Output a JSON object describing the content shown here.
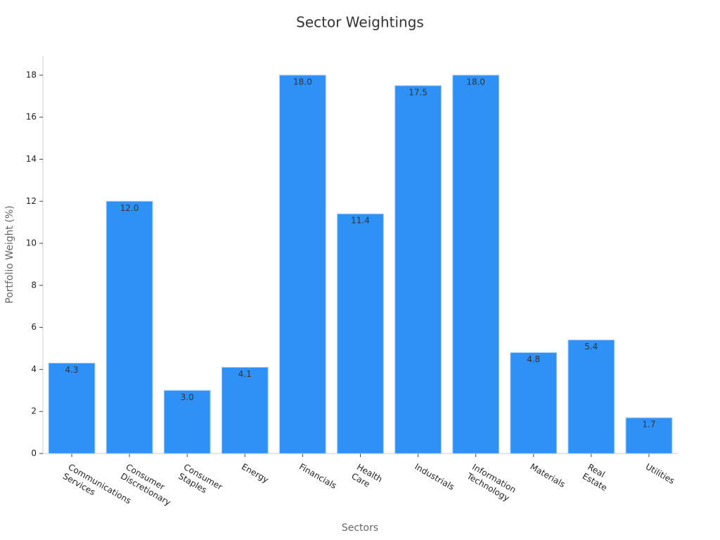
{
  "chart_data": {
    "type": "bar",
    "title": "Sector Weightings",
    "x_label": "Sectors",
    "y_label": "Portfolio Weight (%)",
    "categories": [
      "Communications Services",
      "Consumer Discretionary",
      "Consumer Staples",
      "Energy",
      "Financials",
      "Health Care",
      "Industrials",
      "Information Technology",
      "Materials",
      "Real Estate",
      "Utilities"
    ],
    "values": [
      4.3,
      12.0,
      3.0,
      4.1,
      18.0,
      11.4,
      17.5,
      18.0,
      4.8,
      5.4,
      1.7
    ],
    "value_labels": [
      "4.3",
      "12.0",
      "3.0",
      "4.1",
      "18.0",
      "11.4",
      "17.5",
      "18.0",
      "4.8",
      "5.4",
      "1.7"
    ],
    "color": "#2f91f6",
    "ylim": [
      0,
      18.9
    ],
    "yticks": [
      0,
      2,
      4,
      6,
      8,
      10,
      12,
      14,
      16,
      18
    ],
    "grid": false
  }
}
